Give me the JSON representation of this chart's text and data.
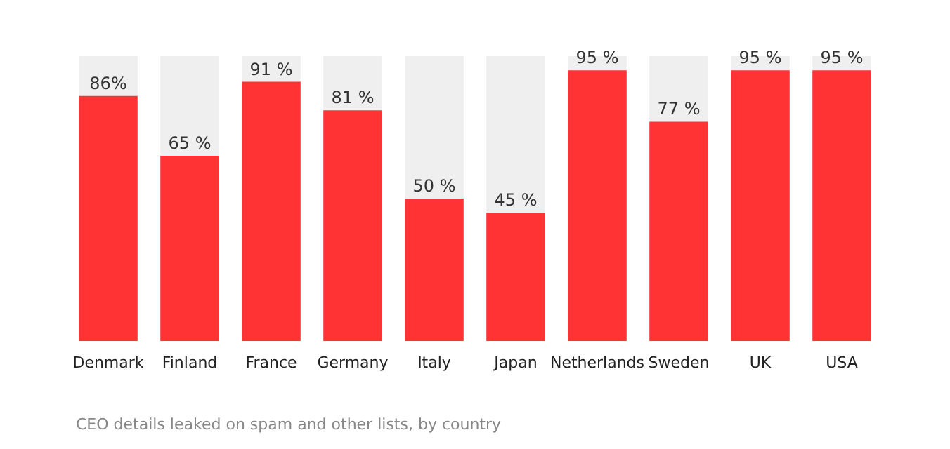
{
  "chart_data": {
    "type": "bar",
    "categories": [
      "Denmark",
      "Finland",
      "France",
      "Germany",
      "Italy",
      "Japan",
      "Netherlands",
      "Sweden",
      "UK",
      "USA"
    ],
    "values": [
      86,
      65,
      91,
      81,
      50,
      45,
      95,
      77,
      95,
      95
    ],
    "value_labels": [
      "86%",
      "65 %",
      "91 %",
      "81 %",
      "50 %",
      "45 %",
      "95 %",
      "77 %",
      "95 %",
      "95 %"
    ],
    "color": "#ff3333",
    "ylim": [
      0,
      100
    ],
    "tick_labels": "x",
    "annotations": [
      "CEO details leaked on spam and other lists, by country"
    ]
  }
}
